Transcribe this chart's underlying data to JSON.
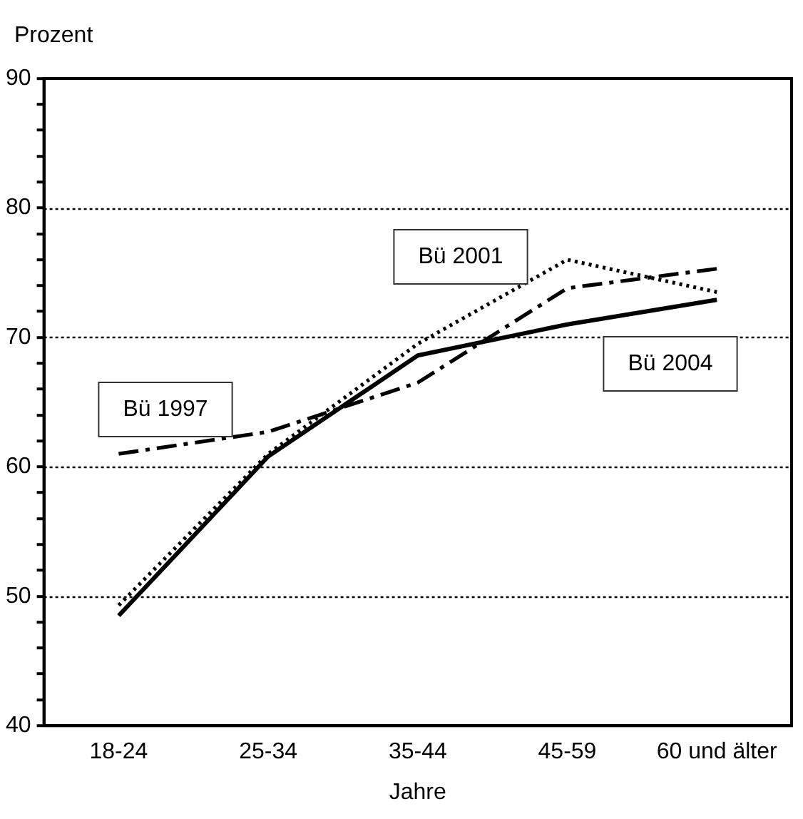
{
  "chart_data": {
    "type": "line",
    "xlabel": "Jahre",
    "ylabel": "Prozent",
    "categories": [
      "18-24",
      "25-34",
      "35-44",
      "45-59",
      "60 und älter"
    ],
    "series": [
      {
        "name": "Bü 1997",
        "color": "#000000",
        "line_style": "dashdot",
        "values": [
          61,
          62.7,
          66.5,
          73.8,
          75.3
        ]
      },
      {
        "name": "Bü 2001",
        "color": "#000000",
        "line_style": "dotted",
        "values": [
          49.3,
          61,
          69.5,
          76,
          73.5
        ]
      },
      {
        "name": "Bü 2004",
        "color": "#000000",
        "line_style": "solid",
        "values": [
          48.5,
          60.8,
          68.6,
          71,
          72.9
        ]
      }
    ],
    "ylim": [
      40,
      90
    ],
    "yticks": [
      40,
      {
        "value": 42,
        "label": null
      },
      {
        "value": 44,
        "label": null
      },
      {
        "value": 46,
        "label": null
      },
      {
        "value": 48,
        "label": null
      },
      50,
      {
        "value": 52,
        "label": null
      },
      {
        "value": 54,
        "label": null
      },
      {
        "value": 56,
        "label": null
      },
      {
        "value": 58,
        "label": null
      },
      60,
      {
        "value": 62,
        "label": null
      },
      {
        "value": 64,
        "label": null
      },
      {
        "value": 66,
        "label": null
      },
      {
        "value": 68,
        "label": null
      },
      70,
      {
        "value": 72,
        "label": null
      },
      {
        "value": 74,
        "label": null
      },
      {
        "value": 76,
        "label": null
      },
      {
        "value": 78,
        "label": null
      },
      80,
      {
        "value": 82,
        "label": null
      },
      {
        "value": 84,
        "label": null
      },
      {
        "value": 86,
        "label": null
      },
      {
        "value": 88,
        "label": null
      },
      90
    ],
    "grid": "y",
    "legend": false,
    "marker": "none"
  }
}
